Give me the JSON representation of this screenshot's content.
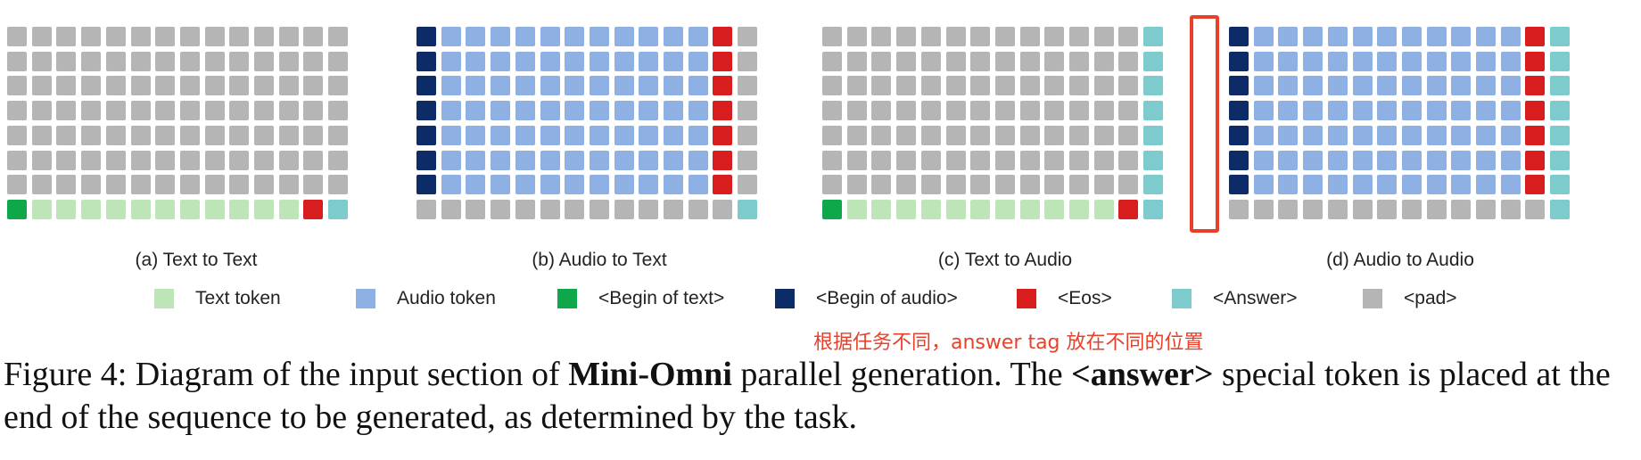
{
  "colors": {
    "text_token": "#bde5b8",
    "audio_token": "#8fb0e3",
    "begin_text": "#0ea84b",
    "begin_audio": "#0d2b67",
    "eos": "#d71d1d",
    "answer": "#7dcbcd",
    "pad": "#b5b5b5",
    "annotation": "#e8412b"
  },
  "panels": [
    {
      "label": "(a) Text to Text"
    },
    {
      "label": "(b) Audio to Text"
    },
    {
      "label": "(c) Text to Audio"
    },
    {
      "label": "(d) Audio to Audio"
    }
  ],
  "legend": [
    {
      "key": "text_token",
      "label": "Text token",
      "icon": "text-token-swatch"
    },
    {
      "key": "audio_token",
      "label": "Audio token",
      "icon": "audio-token-swatch"
    },
    {
      "key": "begin_text",
      "label": "<Begin of text>",
      "icon": "begin-of-text-swatch"
    },
    {
      "key": "begin_audio",
      "label": "<Begin of audio>",
      "icon": "begin-of-audio-swatch"
    },
    {
      "key": "eos",
      "label": "<Eos>",
      "icon": "eos-swatch"
    },
    {
      "key": "answer",
      "label": "<Answer>",
      "icon": "answer-swatch"
    },
    {
      "key": "pad",
      "label": "<pad>",
      "icon": "pad-swatch"
    }
  ],
  "annotation_note": "根据任务不同，answer tag 放在不同的位置",
  "caption": {
    "part1": "Figure 4: Diagram of the input section of ",
    "bold1": "Mini-Omni",
    "part2": " parallel generation. The ",
    "bold2": "<answer>",
    "part3": " special token is placed at the end of the sequence to be generated, as determined by the task."
  }
}
